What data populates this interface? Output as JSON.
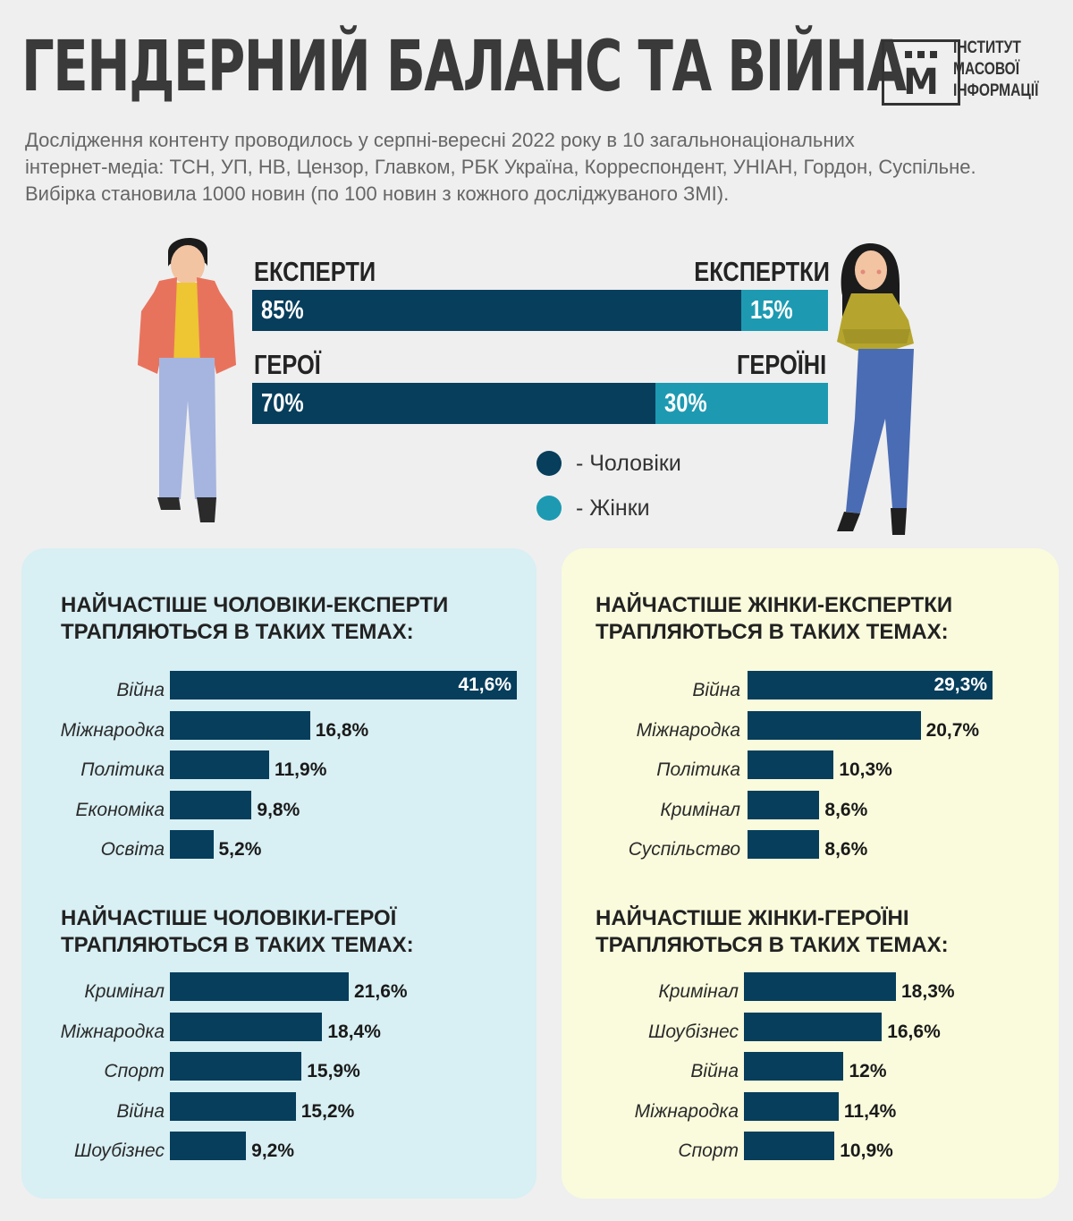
{
  "title": "ГЕНДЕРНИЙ БАЛАНС ТА ВІЙНА",
  "logo": {
    "letter": "М",
    "lines": [
      "ІНСТИТУТ",
      "МАСОВОЇ",
      "ІНФОРМАЦІЇ"
    ]
  },
  "intro": [
    "Дослідження контенту проводилось у серпні-вересні 2022 року в 10 загальнонаціональних",
    "інтернет-медіа: ТСН, УП, НВ, Цензор, Главком, РБК Україна, Корреспондент, УНІАН, Гордон, Суспільне.",
    "Вибірка становила 1000 новин (по 100 новин з кожного досліджуваного ЗМІ)."
  ],
  "colors": {
    "men": "#063e5c",
    "women": "#1d9ab2",
    "panel_men": "#d8eff3",
    "panel_women": "#fafbdc"
  },
  "split": [
    {
      "left_label": "ЕКСПЕРТИ",
      "right_label": "ЕКСПЕРТКИ",
      "men": 85,
      "women": 15,
      "men_text": "85%",
      "women_text": "15%"
    },
    {
      "left_label": "ГЕРОЇ",
      "right_label": "ГЕРОЇНІ",
      "men": 70,
      "women": 30,
      "men_text": "70%",
      "women_text": "30%"
    }
  ],
  "legend": {
    "men": "- Чоловіки",
    "women": "- Жінки"
  },
  "chart_data": [
    {
      "type": "bar",
      "title": "НАЙЧАСТІШЕ ЧОЛОВІКИ-ЕКСПЕРТИ ТРАПЛЯЮТЬСЯ В ТАКИХ ТЕМАХ:",
      "title_lines": [
        "НАЙЧАСТІШЕ ЧОЛОВІКИ-ЕКСПЕРТИ",
        "ТРАПЛЯЮТЬСЯ В ТАКИХ ТЕМАХ:"
      ],
      "categories": [
        "Війна",
        "Міжнародка",
        "Політика",
        "Економіка",
        "Освіта"
      ],
      "values": [
        41.6,
        16.8,
        11.9,
        9.8,
        5.2
      ],
      "labels": [
        "41,6%",
        "16,8%",
        "11,9%",
        "9,8%",
        "5,2%"
      ]
    },
    {
      "type": "bar",
      "title": "НАЙЧАСТІШЕ ЧОЛОВІКИ-ГЕРОЇ ТРАПЛЯЮТЬСЯ В ТАКИХ ТЕМАХ:",
      "title_lines": [
        "НАЙЧАСТІШЕ ЧОЛОВІКИ-ГЕРОЇ",
        "ТРАПЛЯЮТЬСЯ В ТАКИХ ТЕМАХ:"
      ],
      "categories": [
        "Кримінал",
        "Міжнародка",
        "Спорт",
        "Війна",
        "Шоубізнес"
      ],
      "values": [
        21.6,
        18.4,
        15.9,
        15.2,
        9.2
      ],
      "labels": [
        "21,6%",
        "18,4%",
        "15,9%",
        "15,2%",
        "9,2%"
      ]
    },
    {
      "type": "bar",
      "title": "НАЙЧАСТІШЕ ЖІНКИ-ЕКСПЕРТКИ ТРАПЛЯЮТЬСЯ В ТАКИХ ТЕМАХ:",
      "title_lines": [
        "НАЙЧАСТІШЕ ЖІНКИ-ЕКСПЕРТКИ",
        "ТРАПЛЯЮТЬСЯ В ТАКИХ ТЕМАХ:"
      ],
      "categories": [
        "Війна",
        "Міжнародка",
        "Політика",
        "Кримінал",
        "Суспільство"
      ],
      "values": [
        29.3,
        20.7,
        10.3,
        8.6,
        8.6
      ],
      "labels": [
        "29,3%",
        "20,7%",
        "10,3%",
        "8,6%",
        "8,6%"
      ]
    },
    {
      "type": "bar",
      "title": "НАЙЧАСТІШЕ ЖІНКИ-ГЕРОЇНІ ТРАПЛЯЮТЬСЯ В ТАКИХ ТЕМАХ:",
      "title_lines": [
        "НАЙЧАСТІШЕ ЖІНКИ-ГЕРОЇНІ",
        "ТРАПЛЯЮТЬСЯ В ТАКИХ ТЕМАХ:"
      ],
      "categories": [
        "Кримінал",
        "Шоубізнес",
        "Війна",
        "Міжнародка",
        "Спорт"
      ],
      "values": [
        18.3,
        16.6,
        12,
        11.4,
        10.9
      ],
      "labels": [
        "18,3%",
        "16,6%",
        "12%",
        "11,4%",
        "10,9%"
      ]
    }
  ]
}
